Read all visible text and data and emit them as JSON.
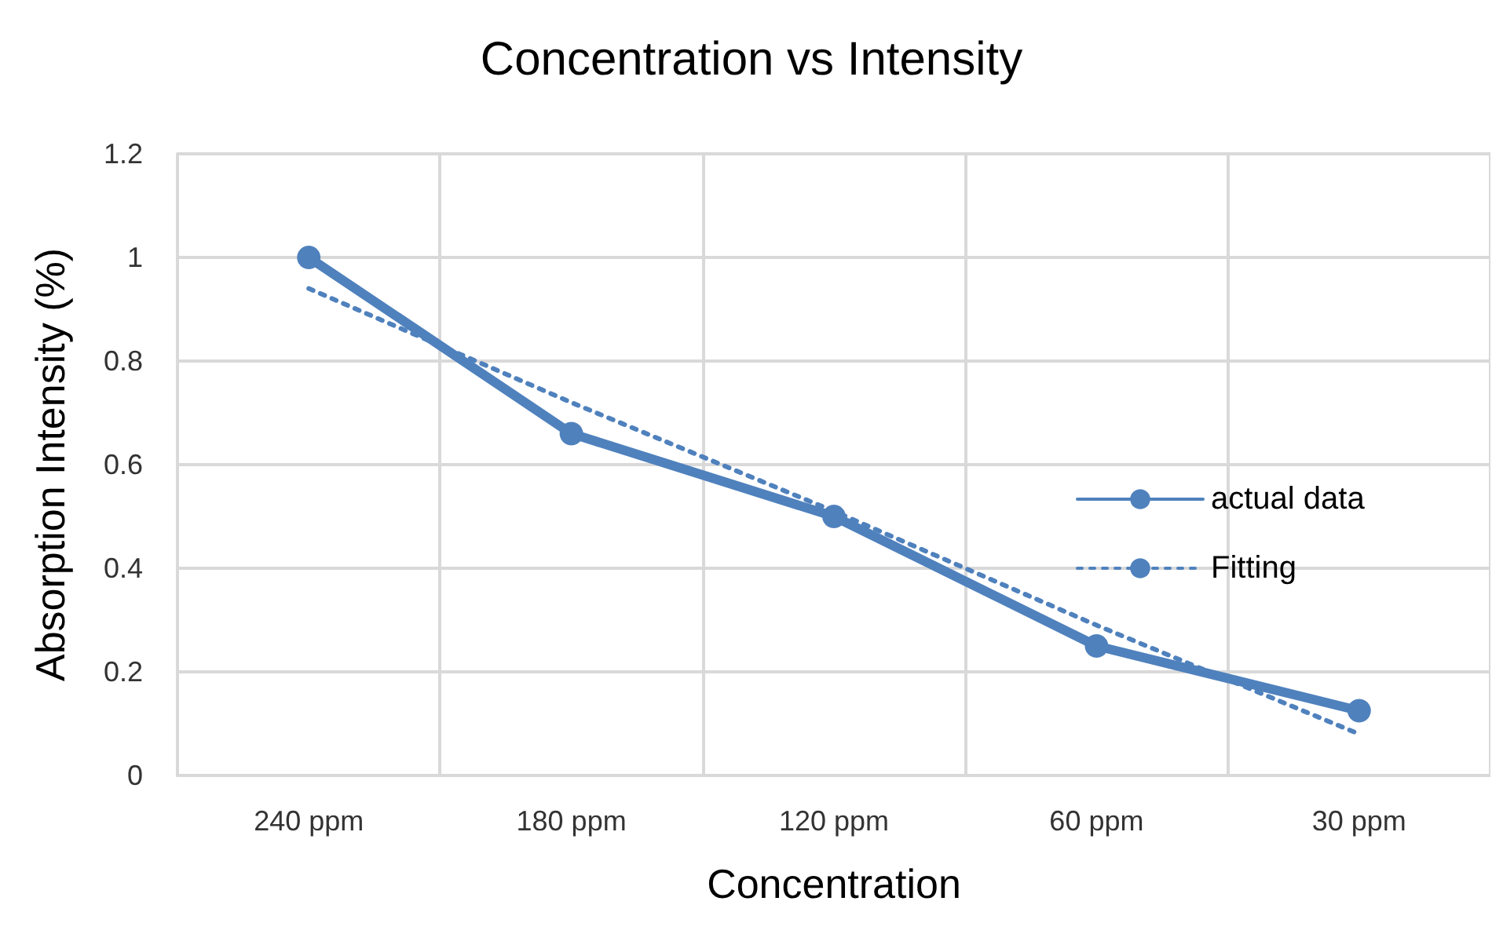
{
  "chart_data": {
    "type": "line",
    "title": "Concentration vs Intensity",
    "xlabel": "Concentration",
    "ylabel": "Absorption Intensity (%)",
    "categories": [
      "240 ppm",
      "180 ppm",
      "120 ppm",
      "60 ppm",
      "30 ppm"
    ],
    "series": [
      {
        "name": "actual data",
        "color": "#4f81bd",
        "values": [
          1,
          0.66,
          0.5,
          0.25,
          0.125
        ],
        "marker": "circle",
        "line_style": "solid"
      },
      {
        "name": "Fitting",
        "type": "line",
        "color": "#4f81bd",
        "x": [
          "240 ppm",
          "180 ppm",
          "120 ppm",
          "60 ppm",
          "30 ppm"
        ],
        "values": [
          0.94,
          0.72,
          0.51,
          0.29,
          0.08
        ],
        "marker": "none",
        "line_style": "dotted"
      }
    ],
    "ylim": [
      0,
      1.2
    ],
    "yticks": [
      0,
      0.2,
      0.4,
      0.6,
      0.8,
      1,
      1.2
    ],
    "grid": true,
    "legend": "right"
  }
}
